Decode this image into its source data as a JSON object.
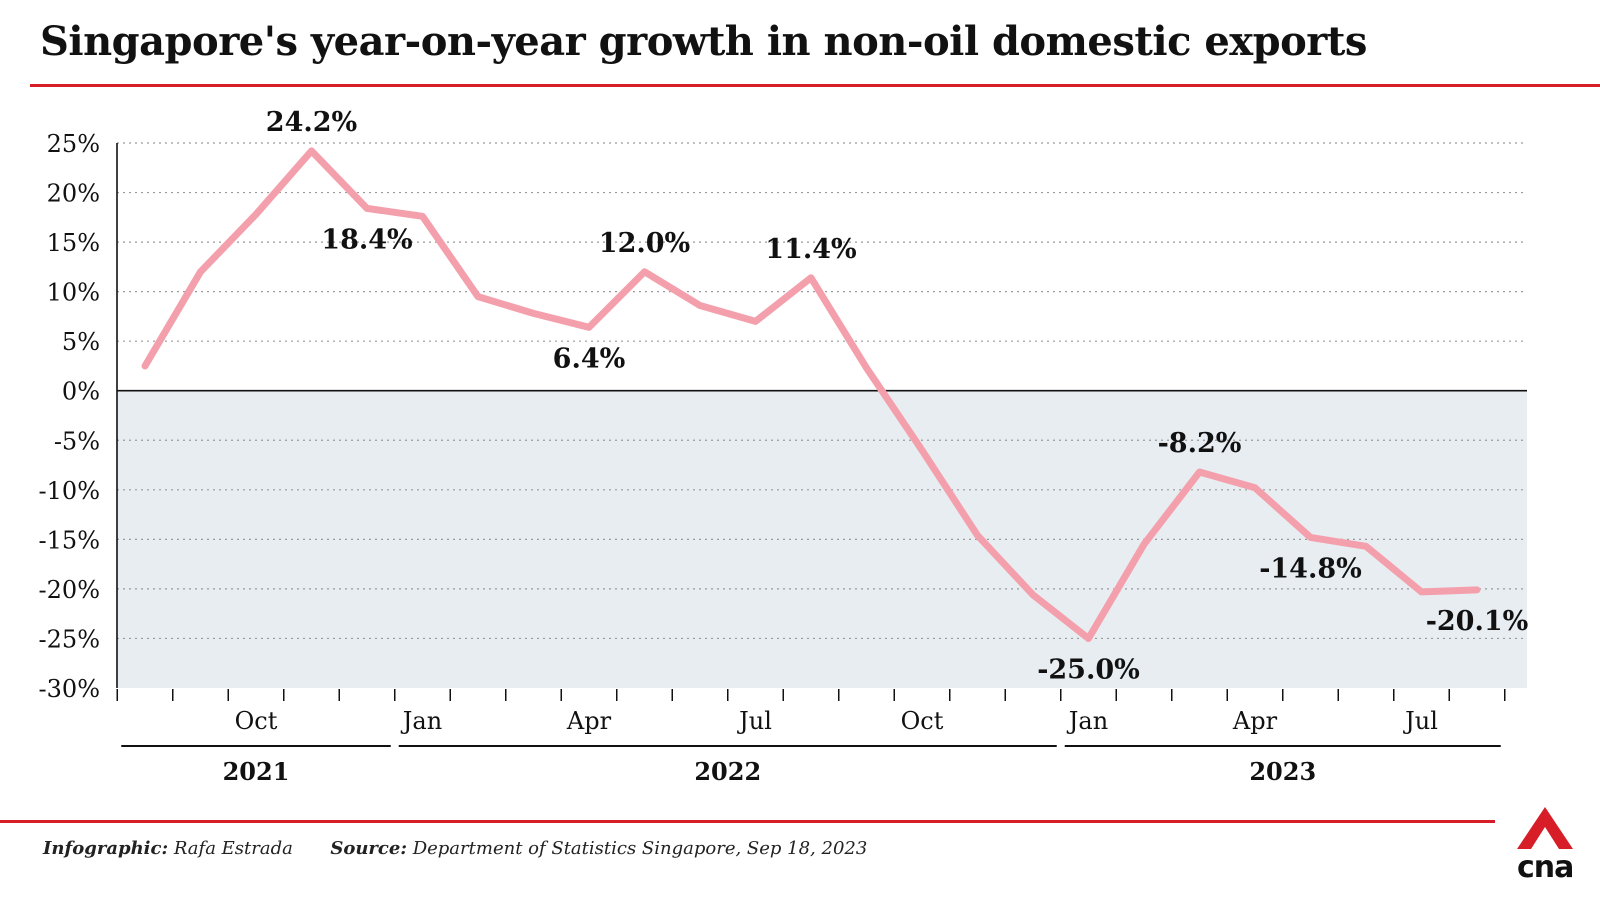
{
  "title": "Singapore's year-on-year growth in non-oil domestic exports",
  "footer": {
    "infographic_label": "Infographic:",
    "infographic_value": "Rafa Estrada",
    "source_label": "Source:",
    "source_value": "Department of Statistics Singapore, Sep 18, 2023"
  },
  "logo": {
    "text": "cna",
    "icon": "cna-logo-icon",
    "color": "#d71e28"
  },
  "colors": {
    "line": "#f4a0ac",
    "negative_band": "#e8edf2",
    "accent": "#d71e28"
  },
  "chart_data": {
    "type": "line",
    "title": "Singapore's year-on-year growth in non-oil domestic exports",
    "xlabel": "",
    "ylabel": "",
    "ylim": [
      -30,
      25
    ],
    "yticks": [
      25,
      20,
      15,
      10,
      5,
      0,
      -5,
      -10,
      -15,
      -20,
      -25,
      -30
    ],
    "ytick_labels": [
      "25%",
      "20%",
      "15%",
      "10%",
      "5%",
      "0%",
      "-5%",
      "-10%",
      "-15%",
      "-20%",
      "-25%",
      "-30%"
    ],
    "grid": "horizontal dotted",
    "negative_region_shaded": true,
    "x": [
      "2021-08",
      "2021-09",
      "2021-10",
      "2021-11",
      "2021-12",
      "2022-01",
      "2022-02",
      "2022-03",
      "2022-04",
      "2022-05",
      "2022-06",
      "2022-07",
      "2022-08",
      "2022-09",
      "2022-10",
      "2022-11",
      "2022-12",
      "2023-01",
      "2023-02",
      "2023-03",
      "2023-04",
      "2023-05",
      "2023-06",
      "2023-07",
      "2023-08"
    ],
    "series": [
      {
        "values": [
          2.5,
          12.0,
          17.8,
          24.2,
          18.4,
          17.6,
          9.5,
          7.8,
          6.4,
          12.0,
          8.6,
          7.0,
          11.4,
          2.3,
          -6.0,
          -14.6,
          -20.6,
          -25.0,
          -15.5,
          -8.2,
          -9.8,
          -14.8,
          -15.7,
          -20.3,
          -20.1
        ]
      }
    ],
    "x_tick_labels": [
      {
        "x": "2021-10",
        "label": "Oct"
      },
      {
        "x": "2022-01",
        "label": "Jan"
      },
      {
        "x": "2022-04",
        "label": "Apr"
      },
      {
        "x": "2022-07",
        "label": "Jul"
      },
      {
        "x": "2022-10",
        "label": "Oct"
      },
      {
        "x": "2023-01",
        "label": "Jan"
      },
      {
        "x": "2023-04",
        "label": "Apr"
      },
      {
        "x": "2023-07",
        "label": "Jul"
      }
    ],
    "year_labels": [
      {
        "label": "2021",
        "from": "2021-08",
        "to": "2021-12"
      },
      {
        "label": "2022",
        "from": "2022-01",
        "to": "2022-12"
      },
      {
        "label": "2023",
        "from": "2023-01",
        "to": "2023-08"
      }
    ],
    "annotations": [
      {
        "x": "2021-11",
        "value": 24.2,
        "text": "24.2%",
        "position": "above"
      },
      {
        "x": "2021-12",
        "value": 18.4,
        "text": "18.4%",
        "position": "below"
      },
      {
        "x": "2022-04",
        "value": 6.4,
        "text": "6.4%",
        "position": "below"
      },
      {
        "x": "2022-05",
        "value": 12.0,
        "text": "12.0%",
        "position": "above"
      },
      {
        "x": "2022-08",
        "value": 11.4,
        "text": "11.4%",
        "position": "above"
      },
      {
        "x": "2023-01",
        "value": -25.0,
        "text": "-25.0%",
        "position": "below"
      },
      {
        "x": "2023-03",
        "value": -8.2,
        "text": "-8.2%",
        "position": "above"
      },
      {
        "x": "2023-05",
        "value": -14.8,
        "text": "-14.8%",
        "position": "below"
      },
      {
        "x": "2023-08",
        "value": -20.1,
        "text": "-20.1%",
        "position": "below"
      }
    ]
  }
}
